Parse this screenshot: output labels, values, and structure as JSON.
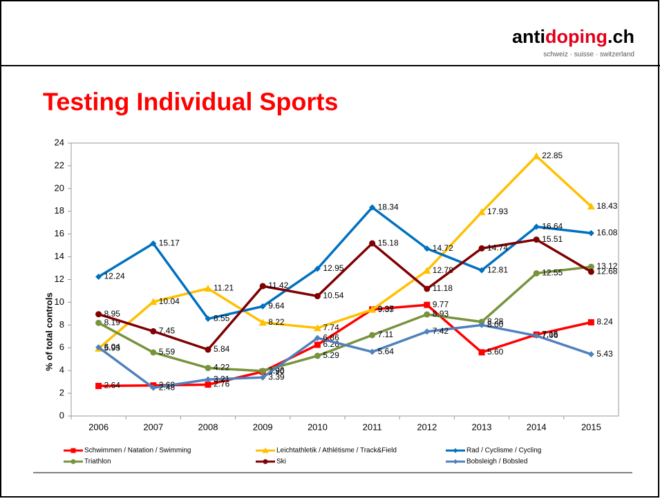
{
  "header": {
    "logo": [
      "anti",
      "doping",
      ".ch"
    ],
    "tagline": "schweiz · suisse · switzerland"
  },
  "chart_data": {
    "type": "line",
    "title": "Testing Individual Sports",
    "y_label": "% of total controls",
    "categories": [
      "2006",
      "2007",
      "2008",
      "2009",
      "2010",
      "2011",
      "2012",
      "2013",
      "2014",
      "2015"
    ],
    "ylim": [
      0,
      24
    ],
    "yticks": [
      0,
      2,
      4,
      6,
      8,
      10,
      12,
      14,
      16,
      18,
      20,
      22,
      24
    ],
    "grid": false,
    "series": [
      {
        "name": "Schwimmen / Natation / Swimming",
        "color": "#ff0000",
        "marker": "square",
        "values": [
          2.64,
          2.69,
          2.76,
          3.9,
          6.26,
          9.37,
          9.77,
          5.6,
          7.16,
          8.24
        ],
        "value_labels": [
          "2.64",
          "2.69",
          "2.76",
          "3.90",
          "6.26",
          "9.37",
          "9.77",
          "5.60",
          "7.16",
          "8.24"
        ]
      },
      {
        "name": "Leichtathletik / Athlétisme / Track&Field",
        "color": "#ffc000",
        "marker": "triangle",
        "values": [
          5.93,
          10.04,
          11.21,
          8.22,
          7.74,
          9.35,
          12.78,
          17.93,
          22.85,
          18.43
        ],
        "value_labels": [
          "5.93",
          "10.04",
          "11.21",
          "8.22",
          "7.74",
          "9.35",
          "12.78",
          "17.93",
          "22.85",
          "18.43"
        ]
      },
      {
        "name": "Rad / Cyclisme / Cycling",
        "color": "#0070c0",
        "marker": "diamond",
        "values": [
          12.24,
          15.17,
          8.55,
          9.64,
          12.95,
          18.34,
          14.72,
          12.81,
          16.64,
          16.08
        ],
        "value_labels": [
          "12.24",
          "15.17",
          "8.55",
          "9.64",
          "12.95",
          "18.34",
          "14.72",
          "12.81",
          "16.64",
          "16.08"
        ]
      },
      {
        "name": "Triathlon",
        "color": "#77933c",
        "marker": "circle",
        "values": [
          8.19,
          5.59,
          4.22,
          3.96,
          5.29,
          7.11,
          8.93,
          8.28,
          12.55,
          13.12
        ],
        "value_labels": [
          "8.19",
          "5.59",
          "4.22",
          "3.96",
          "5.29",
          "7.11",
          "8.93",
          "8.28",
          "12.55",
          "13.12"
        ]
      },
      {
        "name": "Ski",
        "color": "#7f0000",
        "marker": "circle",
        "values": [
          8.95,
          7.45,
          5.84,
          11.42,
          10.54,
          15.18,
          11.18,
          14.74,
          15.51,
          12.68
        ],
        "value_labels": [
          "8.95",
          "7.45",
          "5.84",
          "11.42",
          "10.54",
          "15.18",
          "11.18",
          "14.74",
          "15.51",
          "12.68"
        ]
      },
      {
        "name": "Bobsleigh / Bobsled",
        "color": "#4f81bd",
        "marker": "diamond",
        "values": [
          6.04,
          2.48,
          3.21,
          3.39,
          6.86,
          5.64,
          7.42,
          8.0,
          7.06,
          5.43
        ],
        "value_labels": [
          "6.04",
          "2.48",
          "3.21",
          "3.39",
          "6.86",
          "5.64",
          "7.42",
          "8.00",
          "7.06",
          "5.43"
        ]
      }
    ]
  }
}
